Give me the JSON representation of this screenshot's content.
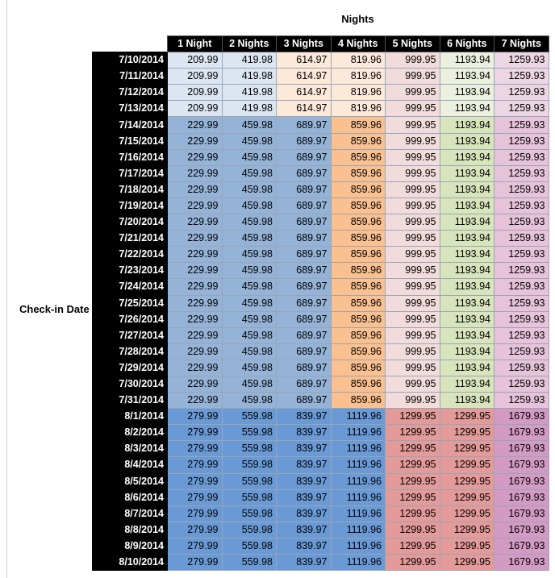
{
  "header": {
    "title": "Nights",
    "row_label": "Check-in Date"
  },
  "table": {
    "columns": [
      "1 Night",
      "2 Nights",
      "3 Nights",
      "4 Nights",
      "5 Nights",
      "6 Nights",
      "7 Nights"
    ],
    "groups": [
      {
        "colors": [
          "#dce6f1",
          "#dce6f1",
          "#fde9d9",
          "#fde9d9",
          "#f2dcdb",
          "#ebf1de",
          "#ecd6e3"
        ],
        "rows": [
          {
            "date": "7/10/2014",
            "values": [
              209.99,
              419.98,
              614.97,
              819.96,
              999.95,
              1193.94,
              1259.93
            ]
          },
          {
            "date": "7/11/2014",
            "values": [
              209.99,
              419.98,
              614.97,
              819.96,
              999.95,
              1193.94,
              1259.93
            ]
          },
          {
            "date": "7/12/2014",
            "values": [
              209.99,
              419.98,
              614.97,
              819.96,
              999.95,
              1193.94,
              1259.93
            ]
          },
          {
            "date": "7/13/2014",
            "values": [
              209.99,
              419.98,
              614.97,
              819.96,
              999.95,
              1193.94,
              1259.93
            ]
          }
        ]
      },
      {
        "colors": [
          "#95b3d7",
          "#95b3d7",
          "#95b3d7",
          "#fac090",
          "#f2dcdb",
          "#d8e4bc",
          "#e6c3d9"
        ],
        "rows": [
          {
            "date": "7/14/2014",
            "values": [
              229.99,
              459.98,
              689.97,
              859.96,
              999.95,
              1193.94,
              1259.93
            ]
          },
          {
            "date": "7/15/2014",
            "values": [
              229.99,
              459.98,
              689.97,
              859.96,
              999.95,
              1193.94,
              1259.93
            ]
          },
          {
            "date": "7/16/2014",
            "values": [
              229.99,
              459.98,
              689.97,
              859.96,
              999.95,
              1193.94,
              1259.93
            ]
          },
          {
            "date": "7/17/2014",
            "values": [
              229.99,
              459.98,
              689.97,
              859.96,
              999.95,
              1193.94,
              1259.93
            ]
          },
          {
            "date": "7/18/2014",
            "values": [
              229.99,
              459.98,
              689.97,
              859.96,
              999.95,
              1193.94,
              1259.93
            ]
          },
          {
            "date": "7/19/2014",
            "values": [
              229.99,
              459.98,
              689.97,
              859.96,
              999.95,
              1193.94,
              1259.93
            ]
          },
          {
            "date": "7/20/2014",
            "values": [
              229.99,
              459.98,
              689.97,
              859.96,
              999.95,
              1193.94,
              1259.93
            ]
          },
          {
            "date": "7/21/2014",
            "values": [
              229.99,
              459.98,
              689.97,
              859.96,
              999.95,
              1193.94,
              1259.93
            ]
          },
          {
            "date": "7/22/2014",
            "values": [
              229.99,
              459.98,
              689.97,
              859.96,
              999.95,
              1193.94,
              1259.93
            ]
          },
          {
            "date": "7/23/2014",
            "values": [
              229.99,
              459.98,
              689.97,
              859.96,
              999.95,
              1193.94,
              1259.93
            ]
          },
          {
            "date": "7/24/2014",
            "values": [
              229.99,
              459.98,
              689.97,
              859.96,
              999.95,
              1193.94,
              1259.93
            ]
          },
          {
            "date": "7/25/2014",
            "values": [
              229.99,
              459.98,
              689.97,
              859.96,
              999.95,
              1193.94,
              1259.93
            ]
          },
          {
            "date": "7/26/2014",
            "values": [
              229.99,
              459.98,
              689.97,
              859.96,
              999.95,
              1193.94,
              1259.93
            ]
          },
          {
            "date": "7/27/2014",
            "values": [
              229.99,
              459.98,
              689.97,
              859.96,
              999.95,
              1193.94,
              1259.93
            ]
          },
          {
            "date": "7/28/2014",
            "values": [
              229.99,
              459.98,
              689.97,
              859.96,
              999.95,
              1193.94,
              1259.93
            ]
          },
          {
            "date": "7/29/2014",
            "values": [
              229.99,
              459.98,
              689.97,
              859.96,
              999.95,
              1193.94,
              1259.93
            ]
          },
          {
            "date": "7/30/2014",
            "values": [
              229.99,
              459.98,
              689.97,
              859.96,
              999.95,
              1193.94,
              1259.93
            ]
          },
          {
            "date": "7/31/2014",
            "values": [
              229.99,
              459.98,
              689.97,
              859.96,
              999.95,
              1193.94,
              1259.93
            ]
          }
        ]
      },
      {
        "colors": [
          "#6a9ad6",
          "#6a9ad6",
          "#6a9ad6",
          "#6a9ad6",
          "#e39a98",
          "#e39a98",
          "#d39ac4"
        ],
        "rows": [
          {
            "date": "8/1/2014",
            "values": [
              279.99,
              559.98,
              839.97,
              1119.96,
              1299.95,
              1299.95,
              1679.93
            ]
          },
          {
            "date": "8/2/2014",
            "values": [
              279.99,
              559.98,
              839.97,
              1119.96,
              1299.95,
              1299.95,
              1679.93
            ]
          },
          {
            "date": "8/3/2014",
            "values": [
              279.99,
              559.98,
              839.97,
              1119.96,
              1299.95,
              1299.95,
              1679.93
            ]
          },
          {
            "date": "8/4/2014",
            "values": [
              279.99,
              559.98,
              839.97,
              1119.96,
              1299.95,
              1299.95,
              1679.93
            ]
          },
          {
            "date": "8/5/2014",
            "values": [
              279.99,
              559.98,
              839.97,
              1119.96,
              1299.95,
              1299.95,
              1679.93
            ]
          },
          {
            "date": "8/6/2014",
            "values": [
              279.99,
              559.98,
              839.97,
              1119.96,
              1299.95,
              1299.95,
              1679.93
            ]
          },
          {
            "date": "8/7/2014",
            "values": [
              279.99,
              559.98,
              839.97,
              1119.96,
              1299.95,
              1299.95,
              1679.93
            ]
          },
          {
            "date": "8/8/2014",
            "values": [
              279.99,
              559.98,
              839.97,
              1119.96,
              1299.95,
              1299.95,
              1679.93
            ]
          },
          {
            "date": "8/9/2014",
            "values": [
              279.99,
              559.98,
              839.97,
              1119.96,
              1299.95,
              1299.95,
              1679.93
            ]
          },
          {
            "date": "8/10/2014",
            "values": [
              279.99,
              559.98,
              839.97,
              1119.96,
              1299.95,
              1299.95,
              1679.93
            ]
          }
        ]
      }
    ]
  }
}
